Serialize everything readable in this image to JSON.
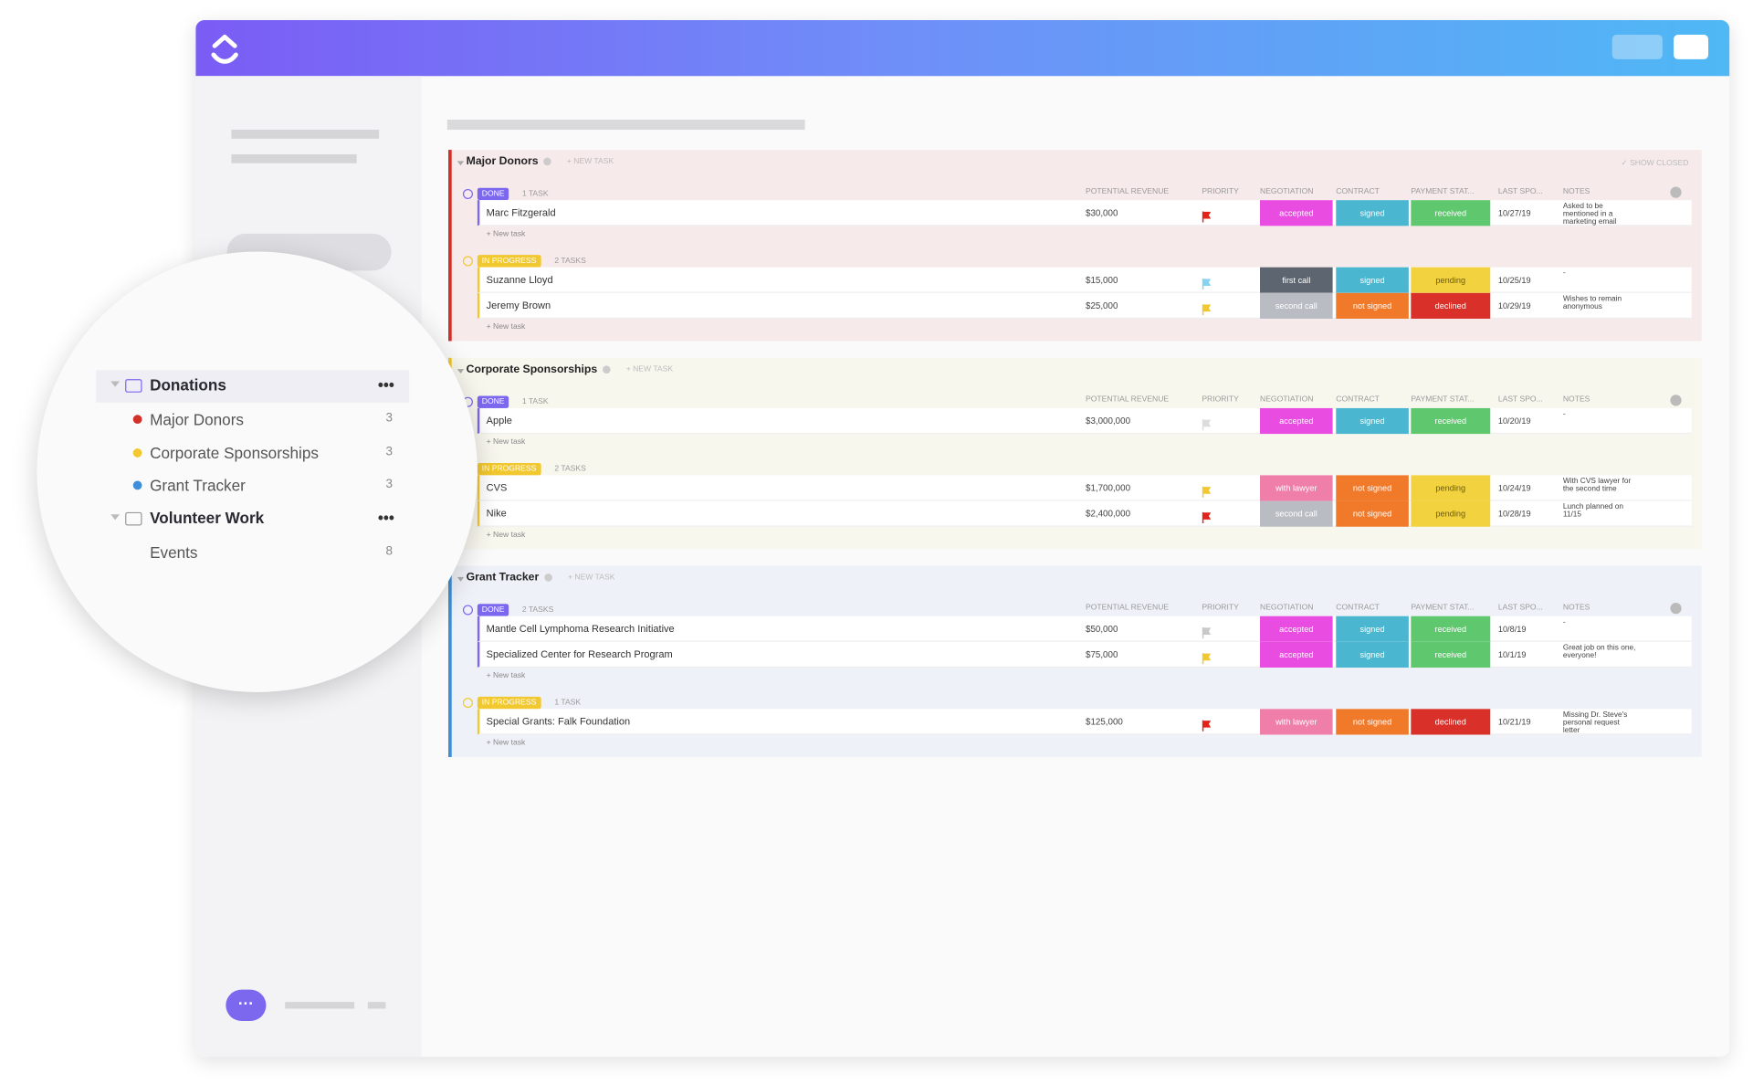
{
  "sidebar": {
    "tree": [
      {
        "name": "Donations",
        "lists": [
          {
            "name": "Major Donors",
            "count": 3,
            "color": "#d3302a"
          },
          {
            "name": "Corporate Sponsorships",
            "count": 3,
            "color": "#f2c830"
          },
          {
            "name": "Grant Tracker",
            "count": 3,
            "color": "#3e8fd8"
          }
        ]
      },
      {
        "name": "Volunteer Work",
        "lists": [
          {
            "name": "Events",
            "count": 8
          }
        ]
      }
    ]
  },
  "columns": [
    "POTENTIAL REVENUE",
    "PRIORITY",
    "NEGOTIATION",
    "CONTRACT",
    "PAYMENT STAT...",
    "LAST SPO...",
    "NOTES"
  ],
  "new_task_header": "+ NEW TASK",
  "new_task_row": "+ New task",
  "show_closed": "✓ SHOW CLOSED",
  "groups": [
    {
      "name": "Major Donors",
      "color": "#d3302a",
      "tint": "#f7eaeb",
      "sections": [
        {
          "status": "DONE",
          "status_color": "#7b68ee",
          "count": "1 TASK",
          "tasks": [
            {
              "name": "Marc Fitzgerald",
              "revenue": "$30,000",
              "flag": "#e2231a",
              "negotiation": {
                "text": "accepted",
                "color": "#e84ce0",
                "ink": "#ffffff"
              },
              "contract": {
                "text": "signed",
                "color": "#4ab6d0",
                "ink": "#ffffff"
              },
              "payment": {
                "text": "received",
                "color": "#5fc86f",
                "ink": "#ffffff"
              },
              "last": "10/27/19",
              "notes": "Asked to be mentioned in a marketing email"
            }
          ]
        },
        {
          "status": "IN PROGRESS",
          "status_color": "#f2c830",
          "count": "2 TASKS",
          "tasks": [
            {
              "name": "Suzanne Lloyd",
              "revenue": "$15,000",
              "flag": "#86d3f0",
              "negotiation": {
                "text": "first call",
                "color": "#5d6670",
                "ink": "#ffffff"
              },
              "contract": {
                "text": "signed",
                "color": "#4ab6d0",
                "ink": "#ffffff"
              },
              "payment": {
                "text": "pending",
                "color": "#f2d23e",
                "ink": "#6b5a10"
              },
              "last": "10/25/19",
              "notes": "-"
            },
            {
              "name": "Jeremy Brown",
              "revenue": "$25,000",
              "flag": "#f2c830",
              "negotiation": {
                "text": "second call",
                "color": "#b9bdc3",
                "ink": "#ffffff"
              },
              "contract": {
                "text": "not signed",
                "color": "#f07a2a",
                "ink": "#ffffff"
              },
              "payment": {
                "text": "declined",
                "color": "#d9302a",
                "ink": "#ffffff"
              },
              "last": "10/29/19",
              "notes": "Wishes to remain anonymous"
            }
          ]
        }
      ]
    },
    {
      "name": "Corporate Sponsorships",
      "color": "#f2c830",
      "tint": "#f8f7ee",
      "sections": [
        {
          "status": "DONE",
          "status_color": "#7b68ee",
          "count": "1 TASK",
          "tasks": [
            {
              "name": "Apple",
              "revenue": "$3,000,000",
              "flag": "#dcdcdc",
              "negotiation": {
                "text": "accepted",
                "color": "#e84ce0",
                "ink": "#ffffff"
              },
              "contract": {
                "text": "signed",
                "color": "#4ab6d0",
                "ink": "#ffffff"
              },
              "payment": {
                "text": "received",
                "color": "#5fc86f",
                "ink": "#ffffff"
              },
              "last": "10/20/19",
              "notes": "-"
            }
          ]
        },
        {
          "status": "IN PROGRESS",
          "status_color": "#f2c830",
          "count": "2 TASKS",
          "tasks": [
            {
              "name": "CVS",
              "revenue": "$1,700,000",
              "flag": "#f2c830",
              "negotiation": {
                "text": "with lawyer",
                "color": "#ef7fa8",
                "ink": "#ffffff"
              },
              "contract": {
                "text": "not signed",
                "color": "#f07a2a",
                "ink": "#ffffff"
              },
              "payment": {
                "text": "pending",
                "color": "#f2d23e",
                "ink": "#6b5a10"
              },
              "last": "10/24/19",
              "notes": "With CVS lawyer for the second time"
            },
            {
              "name": "Nike",
              "revenue": "$2,400,000",
              "flag": "#e2231a",
              "negotiation": {
                "text": "second call",
                "color": "#b9bdc3",
                "ink": "#ffffff"
              },
              "contract": {
                "text": "not signed",
                "color": "#f07a2a",
                "ink": "#ffffff"
              },
              "payment": {
                "text": "pending",
                "color": "#f2d23e",
                "ink": "#6b5a10"
              },
              "last": "10/28/19",
              "notes": "Lunch planned on 11/15"
            }
          ]
        }
      ]
    },
    {
      "name": "Grant Tracker",
      "color": "#3e8fd8",
      "tint": "#eef1f7",
      "sections": [
        {
          "status": "DONE",
          "status_color": "#7b68ee",
          "count": "2 TASKS",
          "tasks": [
            {
              "name": "Mantle Cell Lymphoma Research Initiative",
              "revenue": "$50,000",
              "flag": "#c8c8c8",
              "negotiation": {
                "text": "accepted",
                "color": "#e84ce0",
                "ink": "#ffffff"
              },
              "contract": {
                "text": "signed",
                "color": "#4ab6d0",
                "ink": "#ffffff"
              },
              "payment": {
                "text": "received",
                "color": "#5fc86f",
                "ink": "#ffffff"
              },
              "last": "10/8/19",
              "notes": "-"
            },
            {
              "name": "Specialized Center for Research Program",
              "revenue": "$75,000",
              "flag": "#f2c830",
              "negotiation": {
                "text": "accepted",
                "color": "#e84ce0",
                "ink": "#ffffff"
              },
              "contract": {
                "text": "signed",
                "color": "#4ab6d0",
                "ink": "#ffffff"
              },
              "payment": {
                "text": "received",
                "color": "#5fc86f",
                "ink": "#ffffff"
              },
              "last": "10/1/19",
              "notes": "Great job on this one, everyone!"
            }
          ]
        },
        {
          "status": "IN PROGRESS",
          "status_color": "#f2c830",
          "count": "1 TASK",
          "tasks": [
            {
              "name": "Special Grants: Falk Foundation",
              "revenue": "$125,000",
              "flag": "#e2231a",
              "negotiation": {
                "text": "with lawyer",
                "color": "#ef7fa8",
                "ink": "#ffffff"
              },
              "contract": {
                "text": "not signed",
                "color": "#f07a2a",
                "ink": "#ffffff"
              },
              "payment": {
                "text": "declined",
                "color": "#d9302a",
                "ink": "#ffffff"
              },
              "last": "10/21/19",
              "notes": "Missing Dr. Steve's personal request letter"
            }
          ]
        }
      ]
    }
  ]
}
